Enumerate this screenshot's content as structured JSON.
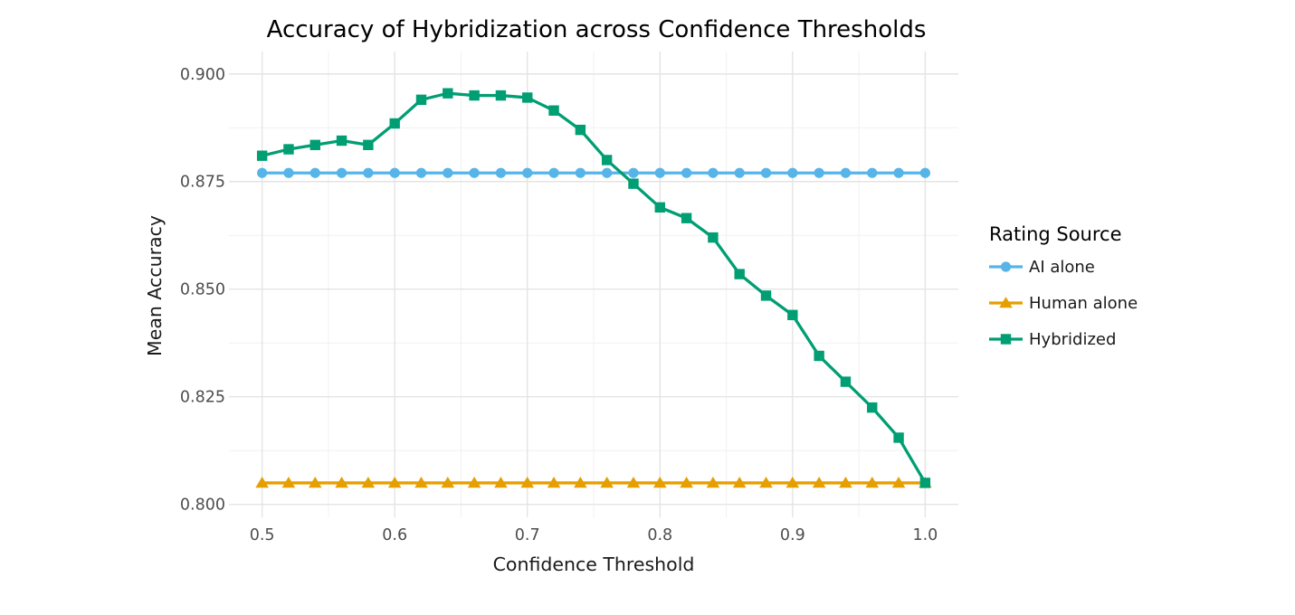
{
  "chart_data": {
    "type": "line",
    "title": "Accuracy of Hybridization across Confidence Thresholds",
    "xlabel": "Confidence Threshold",
    "ylabel": "Mean Accuracy",
    "legend_title": "Rating Source",
    "legend_position": "right",
    "grid": "on",
    "background": "#ffffff",
    "xlim": [
      0.475,
      1.025
    ],
    "ylim": [
      0.797,
      0.9052
    ],
    "x_ticks": [
      0.5,
      0.6,
      0.7,
      0.8,
      0.9,
      1.0
    ],
    "x_tick_labels": [
      "0.5",
      "0.6",
      "0.7",
      "0.8",
      "0.9",
      "1.0"
    ],
    "x_minor_ticks": [
      0.55,
      0.65,
      0.75,
      0.85,
      0.95
    ],
    "y_ticks": [
      0.8,
      0.825,
      0.85,
      0.875,
      0.9
    ],
    "y_tick_labels": [
      "0.800",
      "0.825",
      "0.850",
      "0.875",
      "0.900"
    ],
    "y_minor_ticks": [
      0.8125,
      0.8375,
      0.8625,
      0.8875
    ],
    "x": [
      0.5,
      0.52,
      0.54,
      0.56,
      0.58,
      0.6,
      0.62,
      0.64,
      0.66,
      0.68,
      0.7,
      0.72,
      0.74,
      0.76,
      0.78,
      0.8,
      0.82,
      0.84,
      0.86,
      0.88,
      0.9,
      0.92,
      0.94,
      0.96,
      0.98,
      1.0
    ],
    "series": [
      {
        "name": "AI alone",
        "marker": "circle",
        "color": "#56B4E9",
        "values": [
          0.877,
          0.877,
          0.877,
          0.877,
          0.877,
          0.877,
          0.877,
          0.877,
          0.877,
          0.877,
          0.877,
          0.877,
          0.877,
          0.877,
          0.877,
          0.877,
          0.877,
          0.877,
          0.877,
          0.877,
          0.877,
          0.877,
          0.877,
          0.877,
          0.877,
          0.877
        ]
      },
      {
        "name": "Human alone",
        "marker": "triangle",
        "color": "#E69F00",
        "values": [
          0.805,
          0.805,
          0.805,
          0.805,
          0.805,
          0.805,
          0.805,
          0.805,
          0.805,
          0.805,
          0.805,
          0.805,
          0.805,
          0.805,
          0.805,
          0.805,
          0.805,
          0.805,
          0.805,
          0.805,
          0.805,
          0.805,
          0.805,
          0.805,
          0.805,
          0.805
        ]
      },
      {
        "name": "Hybridized",
        "marker": "square",
        "color": "#009E73",
        "values": [
          0.881,
          0.8825,
          0.8835,
          0.8845,
          0.8835,
          0.8885,
          0.894,
          0.8955,
          0.895,
          0.895,
          0.8945,
          0.8915,
          0.887,
          0.88,
          0.8745,
          0.869,
          0.8665,
          0.862,
          0.8535,
          0.8485,
          0.844,
          0.8345,
          0.8285,
          0.8225,
          0.8155,
          0.805
        ]
      }
    ],
    "style": {
      "grid_major_color": "#E4E4E4",
      "grid_minor_color": "#F1F1F1",
      "tick_text_color": "#4d4d4d",
      "title_color": "#000000",
      "axis_title_color": "#1a1a1a"
    }
  }
}
